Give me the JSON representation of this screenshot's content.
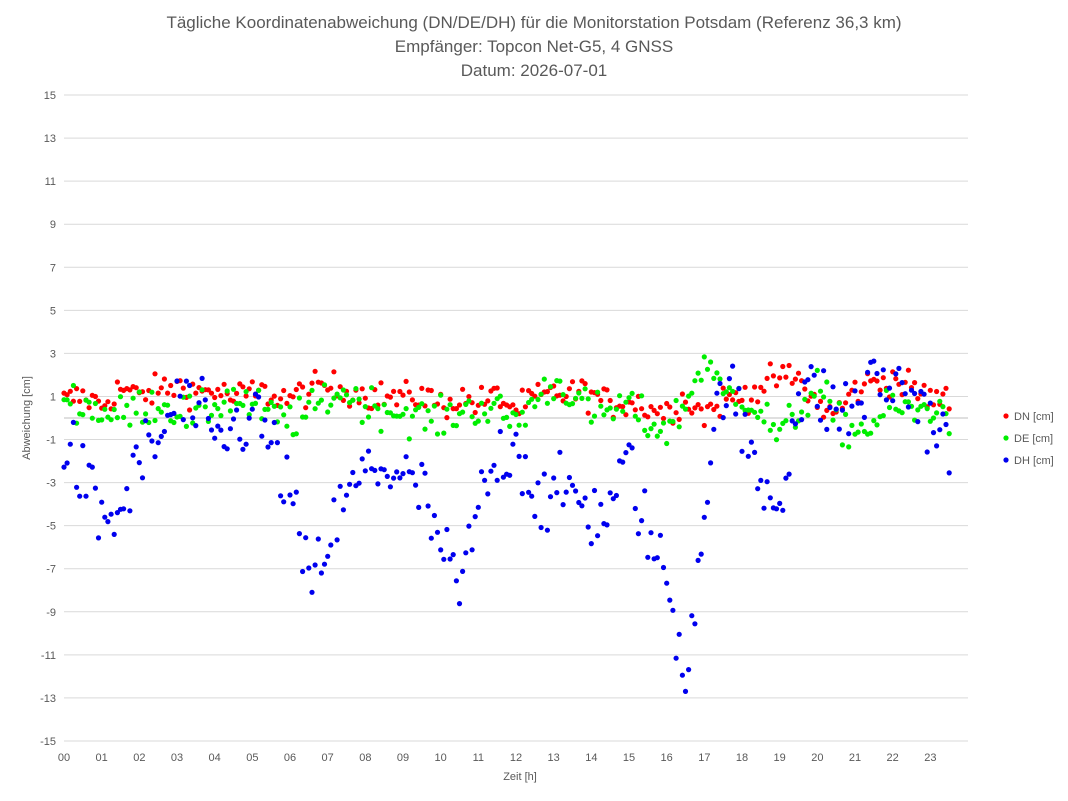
{
  "chart_data": {
    "type": "scatter",
    "title_lines": [
      "Tägliche Koordinatenabweichung (DN/DE/DH) für die Monitorstation Potsdam (Referenz 36,3 km)",
      "Empfänger: Topcon Net-G5, 4 GNSS",
      "Datum: 2026-07-01"
    ],
    "xlabel": "Zeit [h]",
    "ylabel": "Abweichung [cm]",
    "x_tick_labels": [
      "00",
      "01",
      "02",
      "03",
      "04",
      "05",
      "06",
      "07",
      "08",
      "09",
      "10",
      "11",
      "12",
      "13",
      "14",
      "15",
      "16",
      "17",
      "18",
      "19",
      "20",
      "21",
      "22",
      "23"
    ],
    "y_ticks": [
      15,
      13,
      11,
      9,
      7,
      5,
      3,
      1,
      -1,
      -3,
      -5,
      -7,
      -9,
      -11,
      -13,
      -15
    ],
    "xlim": [
      0,
      24
    ],
    "ylim": [
      -15,
      15
    ],
    "grid": true,
    "legend_position": "right",
    "series": [
      {
        "name": "DN [cm]",
        "color": "#ff0000"
      },
      {
        "name": "DE [cm]",
        "color": "#00ee00"
      },
      {
        "name": "DH [cm]",
        "color": "#0000ee"
      }
    ],
    "samples_per_hour": 12,
    "series_anchors": {
      "DN [cm]": {
        "x": [
          0,
          0.5,
          1,
          1.5,
          2,
          2.5,
          3,
          3.5,
          4,
          4.5,
          5,
          5.5,
          6,
          6.5,
          7,
          7.5,
          8,
          8.5,
          9,
          9.5,
          10,
          10.5,
          11,
          11.5,
          12,
          12.5,
          13,
          13.5,
          14,
          14.5,
          15,
          15.5,
          16,
          16.5,
          17,
          17.5,
          18,
          18.5,
          19,
          19.5,
          20,
          20.5,
          21,
          21.5,
          22,
          22.5,
          23,
          23.5
        ],
        "y": [
          0.8,
          1.0,
          0.6,
          1.4,
          1.0,
          1.3,
          1.5,
          1.2,
          1.3,
          0.9,
          1.2,
          1.1,
          0.9,
          1.3,
          1.5,
          1.3,
          1.1,
          1.0,
          0.9,
          1.1,
          0.6,
          0.9,
          0.7,
          1.0,
          0.4,
          0.9,
          1.1,
          1.2,
          1.1,
          0.6,
          0.8,
          0.5,
          0.3,
          0.9,
          0.2,
          0.8,
          1.0,
          1.4,
          1.9,
          1.8,
          0.6,
          0.2,
          1.3,
          1.7,
          1.8,
          1.4,
          0.9,
          0.8
        ]
      },
      "DE [cm]": {
        "x": [
          0,
          0.5,
          1,
          1.5,
          2,
          2.5,
          3,
          3.5,
          4,
          4.5,
          5,
          5.5,
          6,
          6.5,
          7,
          7.5,
          8,
          8.5,
          9,
          9.5,
          10,
          10.5,
          11,
          11.5,
          12,
          12.5,
          13,
          13.5,
          14,
          14.5,
          15,
          15.5,
          16,
          16.5,
          17,
          17.5,
          18,
          18.5,
          19,
          19.5,
          20,
          20.5,
          21,
          21.5,
          22,
          22.5,
          23,
          23.5
        ],
        "y": [
          1.0,
          0.6,
          0.3,
          0.1,
          0.5,
          0.7,
          0.4,
          0.0,
          0.6,
          1.0,
          0.5,
          0.1,
          -0.1,
          0.2,
          1.0,
          1.2,
          0.6,
          0.5,
          0.2,
          0.0,
          -0.1,
          0.3,
          0.5,
          0.3,
          -0.2,
          0.8,
          1.6,
          1.2,
          0.2,
          0.3,
          0.6,
          -0.3,
          -0.5,
          0.6,
          2.8,
          1.0,
          1.2,
          0.3,
          -0.9,
          0.3,
          1.6,
          -0.2,
          -0.6,
          -0.3,
          0.6,
          0.2,
          0.5,
          0.1
        ]
      },
      "DH [cm]": {
        "x": [
          0,
          0.5,
          1,
          1.5,
          2,
          2.5,
          3,
          3.5,
          4,
          4.5,
          5,
          5.5,
          6,
          6.5,
          7,
          7.5,
          8,
          8.5,
          9,
          9.5,
          10,
          10.5,
          11,
          11.5,
          12,
          12.5,
          13,
          13.5,
          14,
          14.5,
          15,
          15.5,
          16,
          16.5,
          17,
          17.5,
          18,
          18.5,
          19,
          19.5,
          20,
          20.5,
          21,
          21.5,
          22,
          22.5,
          23,
          23.5
        ],
        "y": [
          -1.2,
          -2.8,
          -4.8,
          -4.5,
          -2.0,
          -1.2,
          0.8,
          0.2,
          -1.2,
          -0.6,
          0.3,
          -1.2,
          -3.5,
          -8.0,
          -5.8,
          -3.8,
          -2.5,
          -2.2,
          -2.8,
          -3.5,
          -6.0,
          -8.2,
          -4.2,
          -2.0,
          -1.0,
          -3.5,
          -4.0,
          -3.2,
          -4.5,
          -4.2,
          -2.0,
          -5.5,
          -7.5,
          -12.0,
          -4.2,
          2.0,
          -0.5,
          -3.0,
          -3.8,
          1.0,
          1.2,
          0.2,
          0.6,
          1.8,
          1.5,
          1.2,
          0.0,
          -1.5
        ]
      }
    }
  }
}
